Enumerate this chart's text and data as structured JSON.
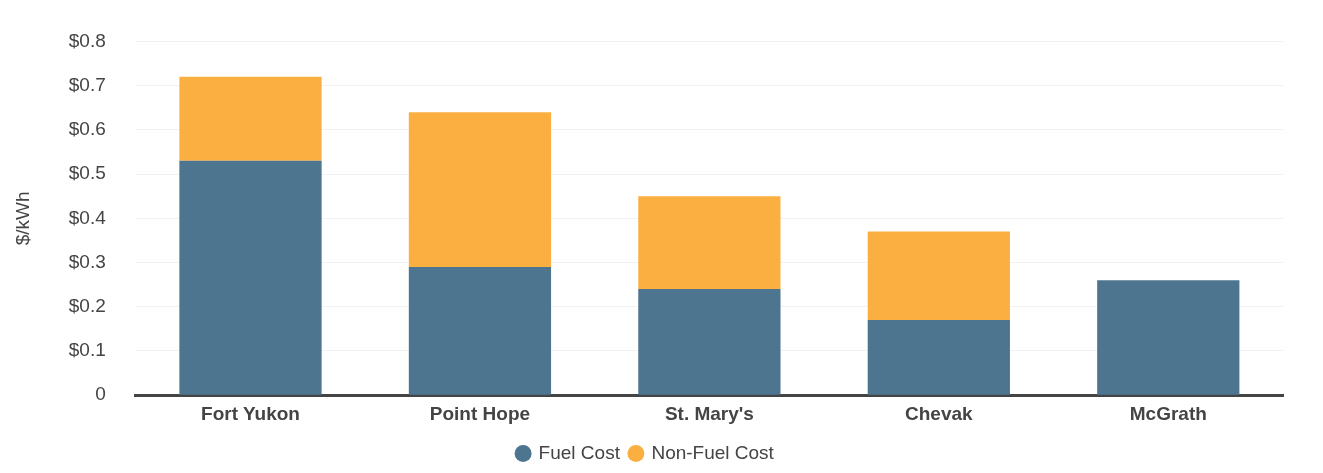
{
  "chart_data": {
    "type": "bar",
    "stacked": true,
    "ylabel": "$/kWh",
    "categories": [
      "Fort Yukon",
      "Point Hope",
      "St. Mary's",
      "Chevak",
      "McGrath"
    ],
    "series": [
      {
        "name": "Fuel Cost",
        "color": "#4e7590",
        "values": [
          0.53,
          0.29,
          0.24,
          0.17,
          0.26
        ]
      },
      {
        "name": "Non-Fuel Cost",
        "color": "#fbaf41",
        "values": [
          0.19,
          0.35,
          0.21,
          0.2,
          0
        ]
      }
    ],
    "ylim": [
      0,
      0.8
    ],
    "yticks": [
      {
        "value": 0,
        "label": "0"
      },
      {
        "value": 0.1,
        "label": "$0.1"
      },
      {
        "value": 0.2,
        "label": "$0.2"
      },
      {
        "value": 0.3,
        "label": "$0.3"
      },
      {
        "value": 0.4,
        "label": "$0.4"
      },
      {
        "value": 0.5,
        "label": "$0.5"
      },
      {
        "value": 0.6,
        "label": "$0.6"
      },
      {
        "value": 0.7,
        "label": "$0.7"
      },
      {
        "value": 0.8,
        "label": "$0.8"
      }
    ],
    "grid": "y",
    "legend": "bottom"
  }
}
